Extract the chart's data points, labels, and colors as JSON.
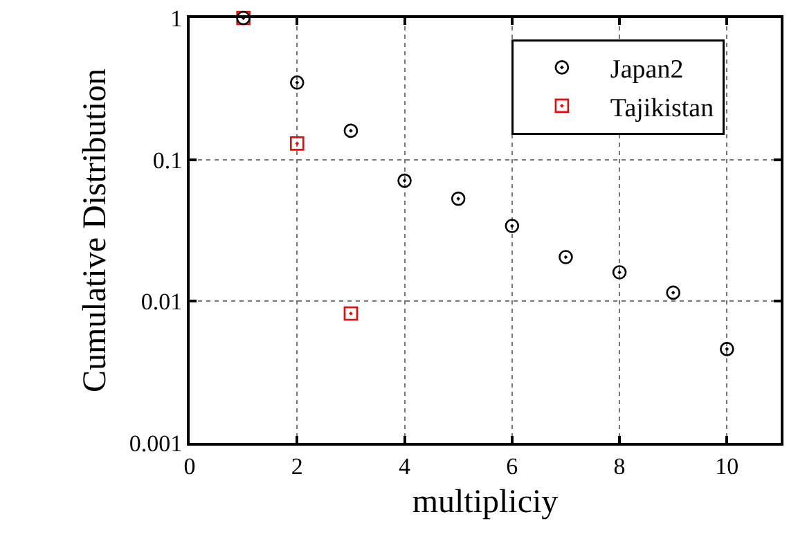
{
  "chart_data": {
    "type": "scatter",
    "xlabel": "multipliciy",
    "ylabel": "Cumulative Distribution",
    "series": [
      {
        "name": "Japan2",
        "color": "#000000",
        "marker": "circle",
        "x": [
          1,
          2,
          3,
          4,
          5,
          6,
          7,
          8,
          9,
          10
        ],
        "values": [
          1,
          0.35,
          0.16,
          0.071,
          0.053,
          0.034,
          0.0205,
          0.016,
          0.0115,
          0.0046
        ]
      },
      {
        "name": "Tajikistan",
        "color": "#ff0000",
        "marker": "square",
        "x": [
          1,
          2,
          3
        ],
        "values": [
          1,
          0.13,
          0.0082
        ]
      }
    ],
    "log": "y",
    "xlim": [
      0,
      11
    ],
    "xticks": [
      0,
      2,
      4,
      6,
      8,
      10
    ],
    "ylim": [
      0.001,
      1
    ],
    "yticks": [
      0.001,
      0.01,
      0.1,
      1
    ],
    "grid": true,
    "legend": "top right"
  }
}
